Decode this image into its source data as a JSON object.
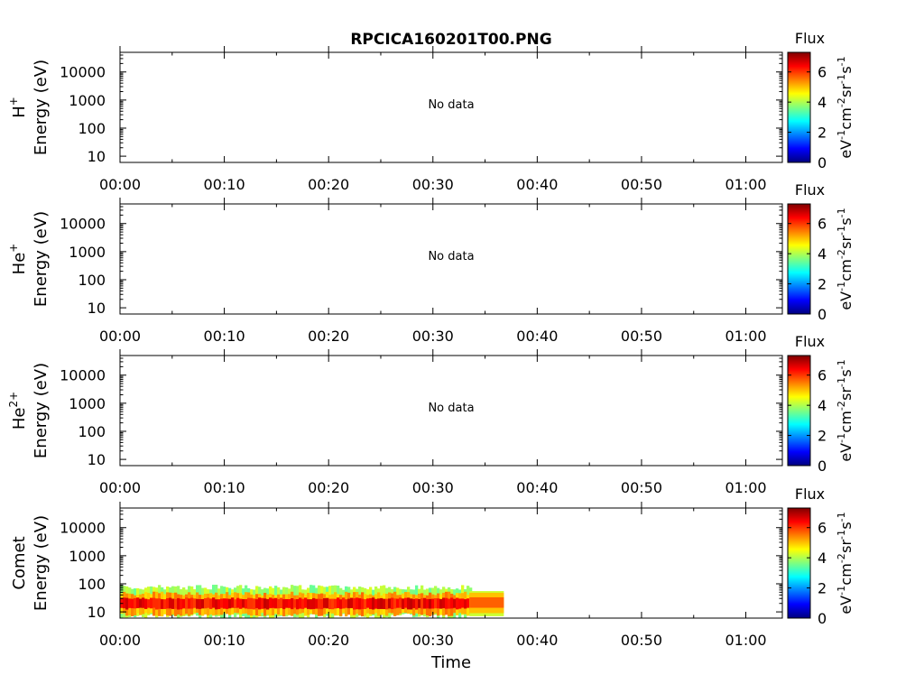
{
  "title": "RPCICA160201T00.PNG",
  "xlabel": "Time",
  "colorbar": {
    "label": "Flux",
    "unit_base": "eV",
    "unit_parts": [
      {
        "base": "eV",
        "exp": "-1"
      },
      {
        "base": "cm",
        "exp": "-2"
      },
      {
        "base": "sr",
        "exp": "-1"
      },
      {
        "base": "s",
        "exp": "-1"
      }
    ],
    "ticks": [
      0,
      2,
      4,
      6
    ],
    "range": [
      0,
      7.3
    ],
    "colormap": [
      "#00007f",
      "#0000ff",
      "#007fff",
      "#00ffff",
      "#7fff7f",
      "#ffff00",
      "#ff7f00",
      "#ff0000",
      "#7f0000"
    ]
  },
  "no_data_text": "No data",
  "chart_data": [
    {
      "type": "heatmap",
      "species": "H",
      "species_sup": "+",
      "ylabel": "Energy (eV)",
      "yscale": "log",
      "ylim": [
        6,
        50000
      ],
      "yticks": [
        "10",
        "100",
        "1000",
        "10000"
      ],
      "xticks": [
        "00:00",
        "00:10",
        "00:20",
        "00:30",
        "00:40",
        "00:50",
        "01:00"
      ],
      "xlim_minutes": [
        0,
        63.5
      ],
      "has_data": false
    },
    {
      "type": "heatmap",
      "species": "He",
      "species_sup": "+",
      "ylabel": "Energy (eV)",
      "yscale": "log",
      "ylim": [
        6,
        50000
      ],
      "yticks": [
        "10",
        "100",
        "1000",
        "10000"
      ],
      "xticks": [
        "00:00",
        "00:10",
        "00:20",
        "00:30",
        "00:40",
        "00:50",
        "01:00"
      ],
      "xlim_minutes": [
        0,
        63.5
      ],
      "has_data": false
    },
    {
      "type": "heatmap",
      "species": "He",
      "species_sup": "2+",
      "ylabel": "Energy (eV)",
      "yscale": "log",
      "ylim": [
        6,
        50000
      ],
      "yticks": [
        "10",
        "100",
        "1000",
        "10000"
      ],
      "xticks": [
        "00:00",
        "00:10",
        "00:20",
        "00:30",
        "00:40",
        "00:50",
        "01:00"
      ],
      "xlim_minutes": [
        0,
        63.5
      ],
      "has_data": false
    },
    {
      "type": "heatmap",
      "species": "Comet",
      "species_sup": "",
      "ylabel": "Energy (eV)",
      "yscale": "log",
      "ylim": [
        6,
        50000
      ],
      "yticks": [
        "10",
        "100",
        "1000",
        "10000"
      ],
      "xticks": [
        "00:00",
        "00:10",
        "00:20",
        "00:30",
        "00:40",
        "00:50",
        "01:00"
      ],
      "xlim_minutes": [
        0,
        63.5
      ],
      "has_data": true,
      "bands": [
        {
          "t_start": 0,
          "t_end": 33.5,
          "e_low": 7,
          "e_high": 75,
          "flux": 3.9,
          "speckle": true
        },
        {
          "t_start": 0,
          "t_end": 33.5,
          "e_low": 8,
          "e_high": 45,
          "flux": 5.2,
          "speckle": true
        },
        {
          "t_start": 0,
          "t_end": 33.5,
          "e_low": 13,
          "e_high": 30,
          "flux": 6.4,
          "speckle": true
        },
        {
          "t_start": 33.5,
          "t_end": 36.8,
          "e_low": 7,
          "e_high": 55,
          "flux": 4.2,
          "speckle": false
        },
        {
          "t_start": 33.5,
          "t_end": 36.8,
          "e_low": 9,
          "e_high": 48,
          "flux": 5.0,
          "speckle": false
        },
        {
          "t_start": 33.5,
          "t_end": 36.8,
          "e_low": 14,
          "e_high": 33,
          "flux": 5.7,
          "speckle": false
        }
      ]
    }
  ]
}
